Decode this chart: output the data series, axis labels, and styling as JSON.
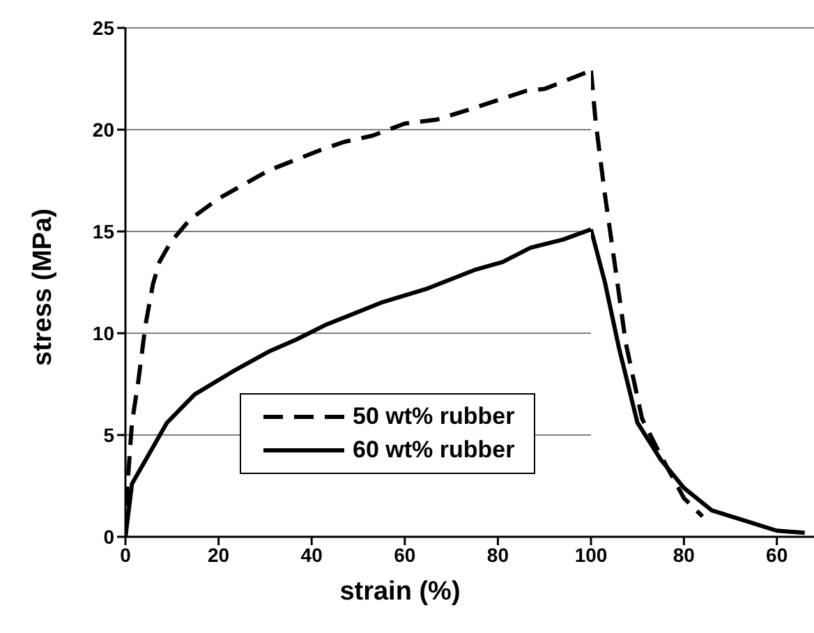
{
  "chart_data": [
    {
      "type": "line",
      "xlabel": "strain (%)",
      "ylabel": "stress (MPa)",
      "xlim": [
        0,
        100
      ],
      "xticks": [
        0,
        20,
        40,
        60,
        80,
        100
      ],
      "ylim": [
        0,
        25
      ],
      "yticks": [
        0,
        5,
        10,
        15,
        20,
        25
      ],
      "grid": "y",
      "legend": "bottom",
      "marker": "none",
      "series": [
        {
          "name": "50 wt% rubber",
          "color": "#000000",
          "line_style": "dashed",
          "x": [
            0,
            0.4,
            1.4,
            2.8,
            4.3,
            5.9,
            7.3,
            9.8,
            13.9,
            19.9,
            30.8,
            41.9,
            47,
            53,
            60,
            67,
            74,
            86,
            90,
            100
          ],
          "values": [
            0,
            2.4,
            5.6,
            7.7,
            10.4,
            12.4,
            13.5,
            14.5,
            15.6,
            16.6,
            18,
            19,
            19.4,
            19.7,
            20.3,
            20.5,
            21,
            21.9,
            22,
            22.9
          ]
        },
        {
          "name": "60 wt% rubber",
          "color": "#000000",
          "line_style": "solid",
          "x": [
            0,
            1.4,
            4.9,
            8.9,
            14.9,
            22.9,
            30.8,
            36.8,
            42.9,
            54.9,
            64.9,
            74.9,
            81,
            87,
            94,
            100
          ],
          "values": [
            0,
            2.6,
            4,
            5.6,
            7,
            8.1,
            9.1,
            9.7,
            10.4,
            11.5,
            12.2,
            13.1,
            13.5,
            14.2,
            14.6,
            15.1
          ]
        }
      ]
    },
    {
      "type": "line",
      "xlim": [
        100,
        52
      ],
      "xticks": [
        80,
        60
      ],
      "ylim": [
        0,
        25
      ],
      "yticks": [
        0,
        5,
        10,
        15,
        20,
        25
      ],
      "grid": "y",
      "tick_labels": "x",
      "marker": "none",
      "series": [
        {
          "color": "#000000",
          "line_style": "dashed",
          "x": [
            100,
            99,
            97,
            95,
            92.5,
            89,
            85,
            80,
            76
          ],
          "values": [
            22.9,
            20.4,
            16.8,
            13.6,
            9.5,
            5.8,
            4,
            1.9,
            1
          ]
        },
        {
          "color": "#000000",
          "line_style": "solid",
          "x": [
            100,
            97,
            94,
            90,
            85,
            80,
            74,
            67,
            60,
            54
          ],
          "values": [
            15.1,
            12.5,
            9.3,
            5.6,
            3.8,
            2.4,
            1.3,
            0.8,
            0.3,
            0.2
          ]
        }
      ]
    }
  ]
}
